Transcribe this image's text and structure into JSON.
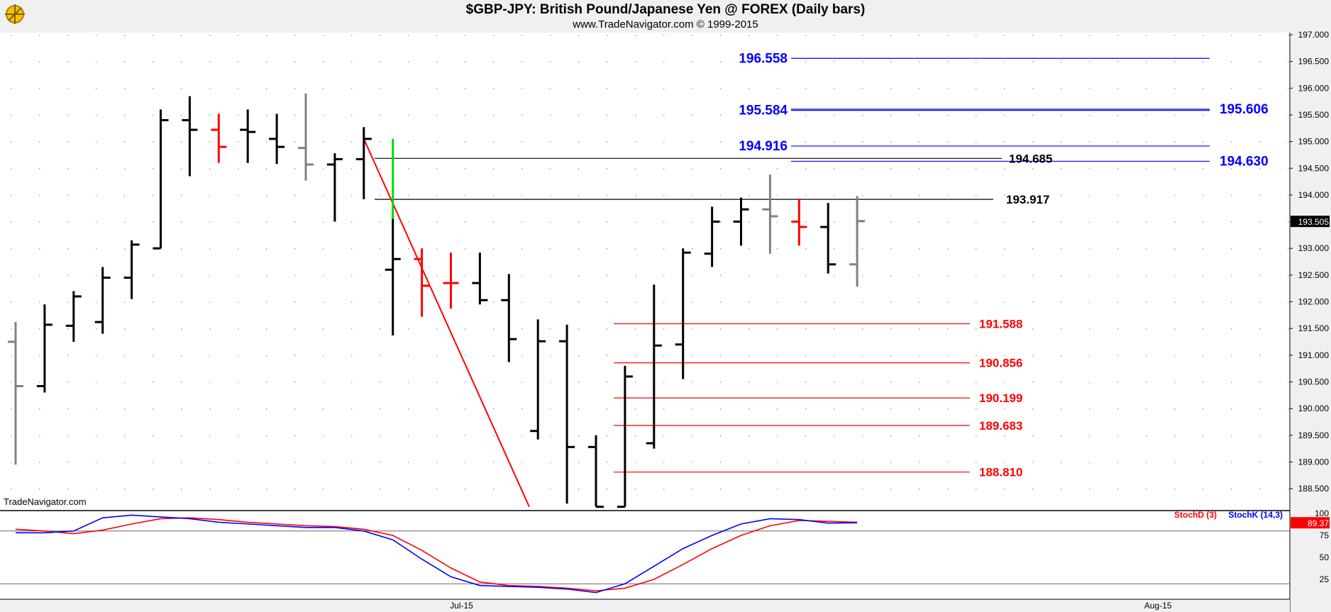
{
  "header": {
    "title": "$GBP-JPY:  British Pound/Japanese Yen @ FOREX  (Daily bars)",
    "subtitle": "www.TradeNavigator.com © 1999-2015",
    "watermark": "TradeNavigator.com"
  },
  "colors": {
    "up_bar": "#000000",
    "neutral_bar": "#808080",
    "down_bar": "#ff0000",
    "target_line": "#0000ff",
    "support_line": "#ff0000",
    "resistance_line": "#000000",
    "trend_line": "#ff0000",
    "signal_bar": "#00dd00",
    "stoch_d": "#ff0000",
    "stoch_k": "#0000ff",
    "background": "#ffffff",
    "axis_bg": "#f0f0f0"
  },
  "chart_data": [
    {
      "type": "ohlc",
      "title": "$GBP-JPY:  British Pound/Japanese Yen @ FOREX  (Daily bars)",
      "subtitle": "www.TradeNavigator.com © 1999-2015",
      "ylim": [
        188.16,
        197.16
      ],
      "y_ticks": [
        "197.000",
        "196.500",
        "196.000",
        "195.500",
        "195.000",
        "194.500",
        "194.000",
        "193.500",
        "193.000",
        "192.500",
        "192.000",
        "191.500",
        "191.000",
        "190.500",
        "190.000",
        "189.500",
        "189.000",
        "188.500"
      ],
      "x_ticks": [
        {
          "label": "Jul-15",
          "bar": 15
        },
        {
          "label": "Aug-15",
          "bar": 39
        }
      ],
      "current_price": "193.505",
      "bars": [
        {
          "o": 191.25,
          "h": 191.62,
          "l": 188.95,
          "c": 190.42,
          "color": "gray"
        },
        {
          "o": 190.42,
          "h": 191.95,
          "l": 190.3,
          "c": 191.57,
          "color": "black"
        },
        {
          "o": 191.55,
          "h": 192.2,
          "l": 191.25,
          "c": 192.1,
          "color": "black"
        },
        {
          "o": 191.62,
          "h": 192.65,
          "l": 191.4,
          "c": 192.45,
          "color": "black"
        },
        {
          "o": 192.45,
          "h": 193.15,
          "l": 192.05,
          "c": 193.07,
          "color": "black"
        },
        {
          "o": 193.0,
          "h": 195.6,
          "l": 193.0,
          "c": 195.4,
          "color": "black"
        },
        {
          "o": 195.4,
          "h": 195.85,
          "l": 194.35,
          "c": 195.22,
          "color": "black"
        },
        {
          "o": 195.22,
          "h": 195.52,
          "l": 194.6,
          "c": 194.9,
          "color": "red"
        },
        {
          "o": 195.22,
          "h": 195.6,
          "l": 194.6,
          "c": 195.18,
          "color": "black"
        },
        {
          "o": 195.05,
          "h": 195.52,
          "l": 194.58,
          "c": 194.9,
          "color": "black"
        },
        {
          "o": 194.88,
          "h": 195.9,
          "l": 194.27,
          "c": 194.57,
          "color": "gray"
        },
        {
          "o": 194.57,
          "h": 194.78,
          "l": 193.5,
          "c": 194.67,
          "color": "black"
        },
        {
          "o": 194.67,
          "h": 195.27,
          "l": 193.92,
          "c": 195.05,
          "color": "black"
        },
        {
          "o": 192.6,
          "h": 193.6,
          "l": 191.37,
          "c": 192.8,
          "color": "black"
        },
        {
          "o": 192.8,
          "h": 193.0,
          "l": 191.72,
          "c": 192.3,
          "color": "red"
        },
        {
          "o": 192.35,
          "h": 192.92,
          "l": 191.87,
          "c": 192.35,
          "color": "red"
        },
        {
          "o": 192.35,
          "h": 192.92,
          "l": 191.95,
          "c": 192.03,
          "color": "black"
        },
        {
          "o": 192.03,
          "h": 192.52,
          "l": 190.87,
          "c": 191.3,
          "color": "black"
        },
        {
          "o": 189.58,
          "h": 191.67,
          "l": 189.42,
          "c": 191.26,
          "color": "black"
        },
        {
          "o": 191.26,
          "h": 191.57,
          "l": 188.22,
          "c": 189.28,
          "color": "black"
        },
        {
          "o": 189.28,
          "h": 189.5,
          "l": 188.16,
          "c": 188.16,
          "color": "black"
        },
        {
          "o": 188.16,
          "h": 190.8,
          "l": 188.16,
          "c": 190.6,
          "color": "black"
        },
        {
          "o": 189.35,
          "h": 192.32,
          "l": 189.25,
          "c": 191.18,
          "color": "black"
        },
        {
          "o": 191.2,
          "h": 193.0,
          "l": 190.55,
          "c": 192.92,
          "color": "black"
        },
        {
          "o": 192.9,
          "h": 193.78,
          "l": 192.65,
          "c": 193.5,
          "color": "black"
        },
        {
          "o": 193.5,
          "h": 193.95,
          "l": 193.05,
          "c": 193.73,
          "color": "black"
        },
        {
          "o": 193.73,
          "h": 194.38,
          "l": 192.9,
          "c": 193.6,
          "color": "gray"
        },
        {
          "o": 193.5,
          "h": 193.93,
          "l": 193.05,
          "c": 193.4,
          "color": "red"
        },
        {
          "o": 193.4,
          "h": 193.85,
          "l": 192.53,
          "c": 192.7,
          "color": "black"
        },
        {
          "o": 192.7,
          "h": 193.98,
          "l": 192.28,
          "c": 193.51,
          "color": "gray"
        }
      ],
      "levels": [
        {
          "value": 196.558,
          "label": "196.558",
          "color": "blue",
          "label_side": "left"
        },
        {
          "value": 195.584,
          "label": "195.584",
          "color": "blue",
          "label_side": "left"
        },
        {
          "value": 195.606,
          "label": "195.606",
          "color": "blue",
          "label_side": "right"
        },
        {
          "value": 194.916,
          "label": "194.916",
          "color": "blue",
          "label_side": "left"
        },
        {
          "value": 194.63,
          "label": "194.630",
          "color": "blue",
          "label_side": "right"
        },
        {
          "value": 194.685,
          "label": "194.685",
          "color": "black",
          "label_side": "right"
        },
        {
          "value": 193.917,
          "label": "193.917",
          "color": "black",
          "label_side": "right"
        },
        {
          "value": 191.588,
          "label": "191.588",
          "color": "red",
          "label_side": "right"
        },
        {
          "value": 190.856,
          "label": "190.856",
          "color": "red",
          "label_side": "right"
        },
        {
          "value": 190.199,
          "label": "190.199",
          "color": "red",
          "label_side": "right"
        },
        {
          "value": 189.683,
          "label": "189.683",
          "color": "red",
          "label_side": "right"
        },
        {
          "value": 188.81,
          "label": "188.810",
          "color": "red",
          "label_side": "right"
        }
      ],
      "trend_line": {
        "from": {
          "bar": 12,
          "price": 195.05
        },
        "to": {
          "bar": 17.7,
          "price": 188.16
        }
      },
      "signal_bar": {
        "bar": 13,
        "high": 195.05,
        "low": 193.55
      }
    },
    {
      "type": "line",
      "series": [
        {
          "name": "StochD (3)",
          "color": "red",
          "values": [
            82,
            80,
            77,
            81,
            88,
            94,
            95,
            93,
            90,
            88,
            86,
            85,
            82,
            75,
            58,
            38,
            22,
            18,
            17,
            15,
            12,
            15,
            25,
            42,
            60,
            75,
            86,
            92,
            91,
            90
          ]
        },
        {
          "name": "StochK (14,3)",
          "color": "blue",
          "values": [
            78,
            78,
            80,
            95,
            98,
            96,
            94,
            90,
            88,
            86,
            84,
            84,
            80,
            70,
            48,
            28,
            18,
            17,
            16,
            14,
            10,
            20,
            40,
            60,
            75,
            88,
            94,
            93,
            89,
            89.37
          ]
        }
      ],
      "ylim": [
        0,
        100
      ],
      "y_ticks": [
        "100",
        "75",
        "50",
        "25"
      ],
      "reference_lines": [
        80,
        20
      ],
      "last_value": "89.37"
    }
  ]
}
